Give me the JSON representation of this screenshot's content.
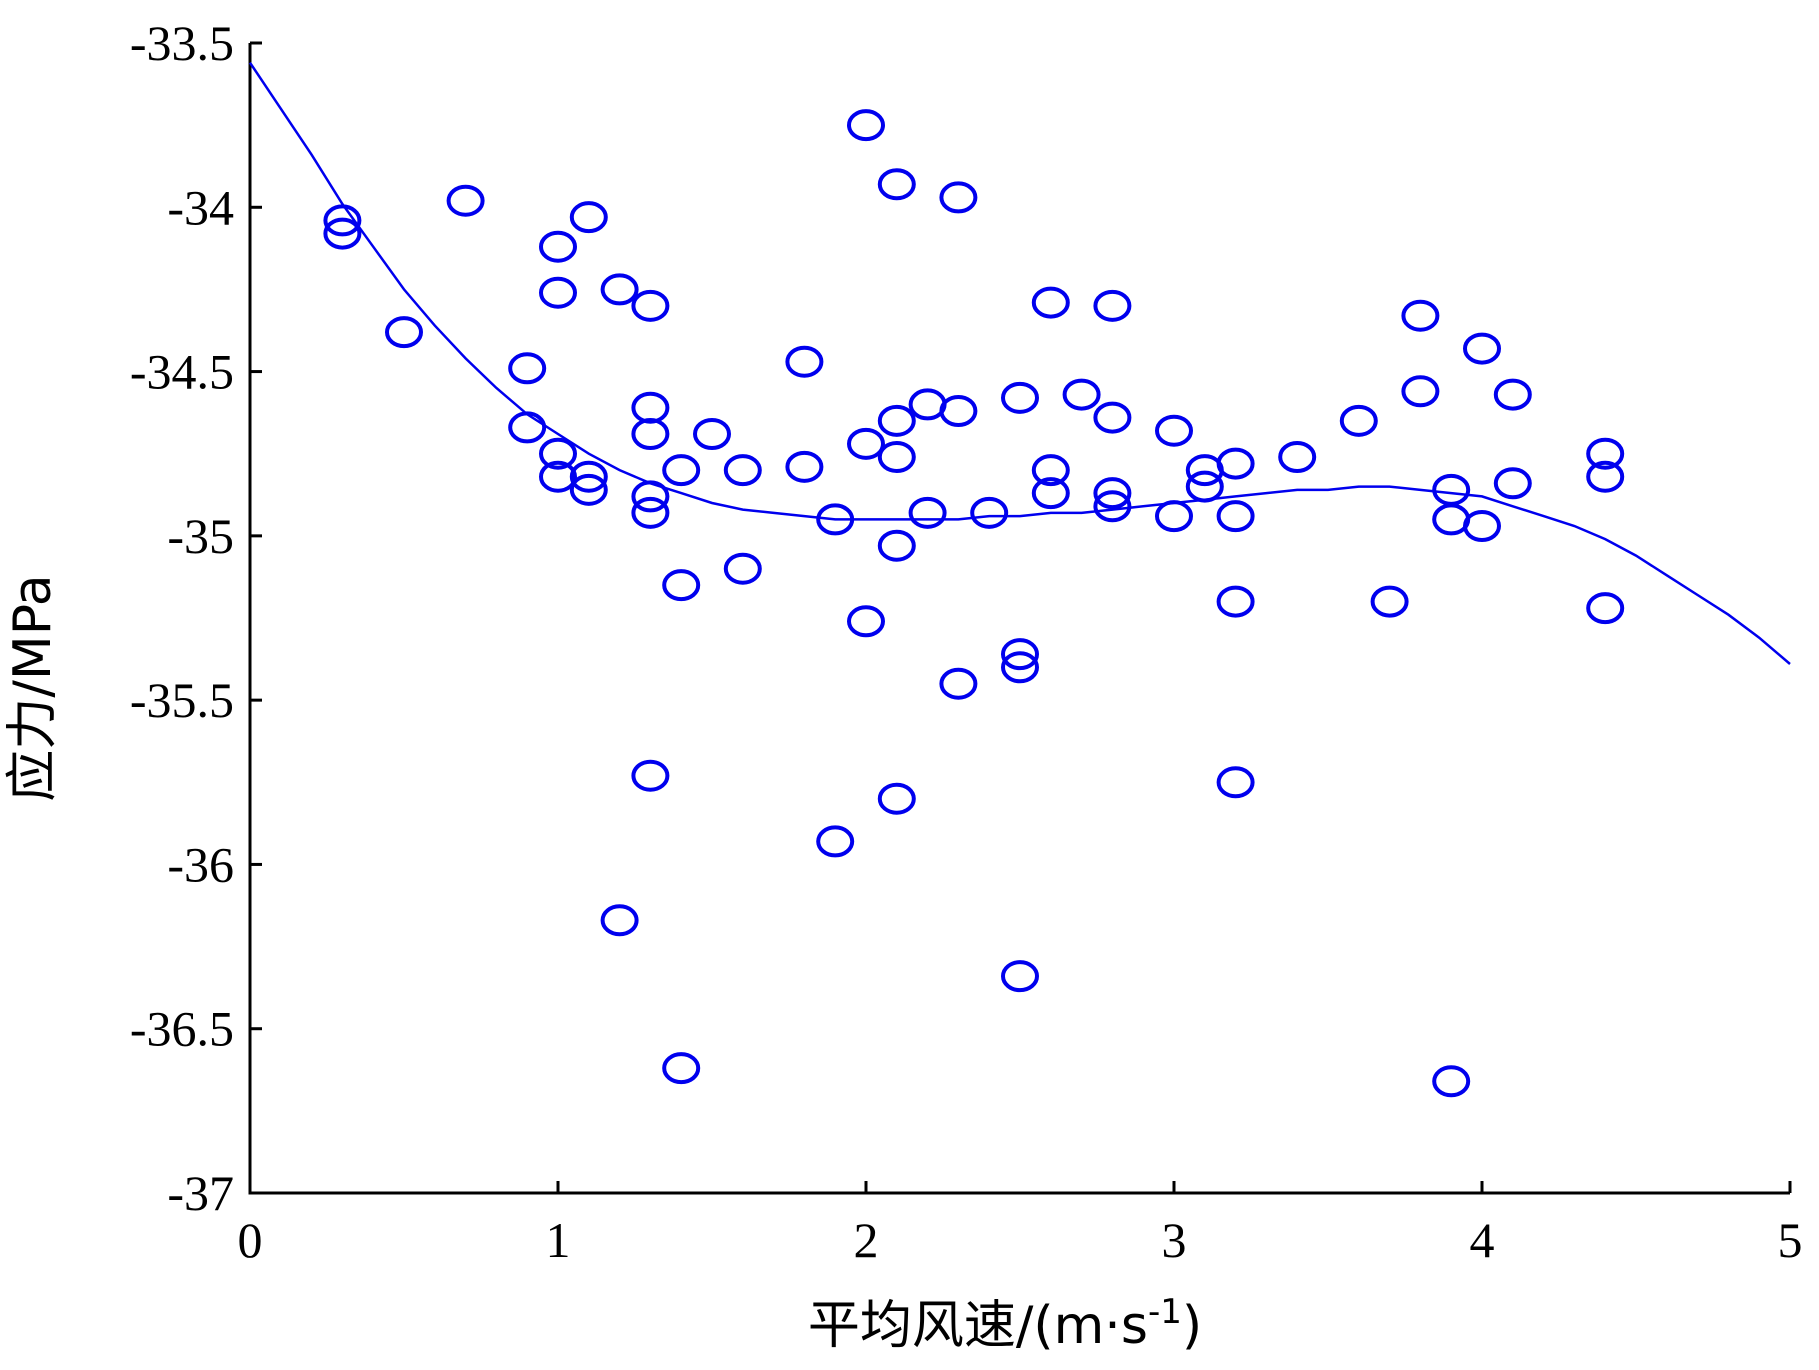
{
  "chart_data": {
    "type": "scatter",
    "title": "",
    "xlabel": "平均风速/(m·s-1)",
    "xlabel_main": "平均风速/(m·s",
    "xlabel_sup": "-1",
    "xlabel_close": ")",
    "ylabel": "应力/MPa",
    "xlim": [
      0,
      5
    ],
    "ylim": [
      -37,
      -33.5
    ],
    "x_ticks": [
      0,
      1,
      2,
      3,
      4,
      5
    ],
    "x_tick_labels": [
      "0",
      "1",
      "2",
      "3",
      "4",
      "5"
    ],
    "y_ticks": [
      -33.5,
      -34,
      -34.5,
      -35,
      -35.5,
      -36,
      -36.5,
      -37
    ],
    "y_tick_labels": [
      "-33.5",
      "-34",
      "-34.5",
      "-35",
      "-35.5",
      "-36",
      "-36.5",
      "-37"
    ],
    "grid": false,
    "color": "#0000ee",
    "series": [
      {
        "kind": "scatter",
        "marker": "circle-open",
        "points": [
          [
            0.3,
            -34.04
          ],
          [
            0.3,
            -34.08
          ],
          [
            0.5,
            -34.38
          ],
          [
            0.7,
            -33.98
          ],
          [
            0.9,
            -34.49
          ],
          [
            0.9,
            -34.67
          ],
          [
            1.0,
            -34.12
          ],
          [
            1.0,
            -34.26
          ],
          [
            1.0,
            -34.75
          ],
          [
            1.0,
            -34.82
          ],
          [
            1.1,
            -34.03
          ],
          [
            1.1,
            -34.82
          ],
          [
            1.1,
            -34.86
          ],
          [
            1.2,
            -34.25
          ],
          [
            1.2,
            -36.17
          ],
          [
            1.3,
            -34.3
          ],
          [
            1.3,
            -34.61
          ],
          [
            1.3,
            -34.69
          ],
          [
            1.3,
            -34.88
          ],
          [
            1.3,
            -34.93
          ],
          [
            1.3,
            -35.73
          ],
          [
            1.4,
            -34.8
          ],
          [
            1.4,
            -35.15
          ],
          [
            1.4,
            -36.62
          ],
          [
            1.5,
            -34.69
          ],
          [
            1.6,
            -34.8
          ],
          [
            1.6,
            -35.1
          ],
          [
            1.8,
            -34.47
          ],
          [
            1.8,
            -34.79
          ],
          [
            1.9,
            -34.95
          ],
          [
            1.9,
            -35.93
          ],
          [
            2.0,
            -33.75
          ],
          [
            2.0,
            -34.72
          ],
          [
            2.0,
            -35.26
          ],
          [
            2.1,
            -33.93
          ],
          [
            2.1,
            -34.65
          ],
          [
            2.1,
            -34.76
          ],
          [
            2.1,
            -35.03
          ],
          [
            2.1,
            -35.8
          ],
          [
            2.2,
            -34.6
          ],
          [
            2.2,
            -34.93
          ],
          [
            2.3,
            -33.97
          ],
          [
            2.3,
            -34.62
          ],
          [
            2.3,
            -35.45
          ],
          [
            2.4,
            -34.93
          ],
          [
            2.5,
            -34.58
          ],
          [
            2.5,
            -35.36
          ],
          [
            2.5,
            -35.4
          ],
          [
            2.5,
            -36.34
          ],
          [
            2.6,
            -34.29
          ],
          [
            2.6,
            -34.8
          ],
          [
            2.6,
            -34.87
          ],
          [
            2.7,
            -34.57
          ],
          [
            2.8,
            -34.3
          ],
          [
            2.8,
            -34.64
          ],
          [
            2.8,
            -34.87
          ],
          [
            2.8,
            -34.91
          ],
          [
            3.0,
            -34.68
          ],
          [
            3.0,
            -34.94
          ],
          [
            3.1,
            -34.8
          ],
          [
            3.1,
            -34.85
          ],
          [
            3.2,
            -34.78
          ],
          [
            3.2,
            -34.94
          ],
          [
            3.2,
            -35.2
          ],
          [
            3.2,
            -35.75
          ],
          [
            3.4,
            -34.76
          ],
          [
            3.6,
            -34.65
          ],
          [
            3.7,
            -35.2
          ],
          [
            3.8,
            -34.33
          ],
          [
            3.8,
            -34.56
          ],
          [
            3.9,
            -34.86
          ],
          [
            3.9,
            -34.95
          ],
          [
            3.9,
            -36.66
          ],
          [
            4.0,
            -34.43
          ],
          [
            4.0,
            -34.97
          ],
          [
            4.1,
            -34.57
          ],
          [
            4.1,
            -34.84
          ],
          [
            4.4,
            -34.75
          ],
          [
            4.4,
            -34.82
          ],
          [
            4.4,
            -35.22
          ]
        ]
      },
      {
        "kind": "line",
        "points": [
          [
            0.0,
            -33.56
          ],
          [
            0.1,
            -33.7
          ],
          [
            0.2,
            -33.84
          ],
          [
            0.3,
            -33.99
          ],
          [
            0.4,
            -34.12
          ],
          [
            0.5,
            -34.25
          ],
          [
            0.6,
            -34.36
          ],
          [
            0.7,
            -34.46
          ],
          [
            0.8,
            -34.55
          ],
          [
            0.9,
            -34.63
          ],
          [
            1.0,
            -34.69
          ],
          [
            1.1,
            -34.75
          ],
          [
            1.2,
            -34.8
          ],
          [
            1.3,
            -34.84
          ],
          [
            1.4,
            -34.87
          ],
          [
            1.5,
            -34.9
          ],
          [
            1.6,
            -34.92
          ],
          [
            1.7,
            -34.93
          ],
          [
            1.8,
            -34.94
          ],
          [
            1.9,
            -34.95
          ],
          [
            2.0,
            -34.95
          ],
          [
            2.1,
            -34.95
          ],
          [
            2.2,
            -34.95
          ],
          [
            2.3,
            -34.95
          ],
          [
            2.4,
            -34.94
          ],
          [
            2.5,
            -34.94
          ],
          [
            2.6,
            -34.93
          ],
          [
            2.7,
            -34.93
          ],
          [
            2.8,
            -34.92
          ],
          [
            2.9,
            -34.91
          ],
          [
            3.0,
            -34.9
          ],
          [
            3.1,
            -34.89
          ],
          [
            3.2,
            -34.88
          ],
          [
            3.3,
            -34.87
          ],
          [
            3.4,
            -34.86
          ],
          [
            3.5,
            -34.86
          ],
          [
            3.6,
            -34.85
          ],
          [
            3.7,
            -34.85
          ],
          [
            3.8,
            -34.86
          ],
          [
            3.9,
            -34.87
          ],
          [
            4.0,
            -34.88
          ],
          [
            4.1,
            -34.91
          ],
          [
            4.2,
            -34.94
          ],
          [
            4.3,
            -34.97
          ],
          [
            4.4,
            -35.01
          ],
          [
            4.5,
            -35.06
          ],
          [
            4.6,
            -35.12
          ],
          [
            4.7,
            -35.18
          ],
          [
            4.8,
            -35.24
          ],
          [
            4.9,
            -35.31
          ],
          [
            5.0,
            -35.39
          ]
        ]
      }
    ]
  }
}
